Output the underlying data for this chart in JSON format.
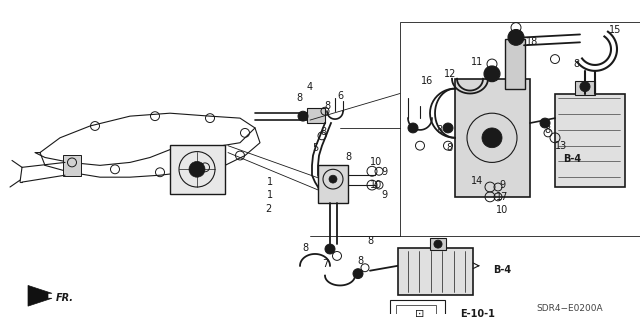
{
  "bg_color": "#ffffff",
  "diagram_color": "#1a1a1a",
  "fig_width": 6.4,
  "fig_height": 3.19,
  "dpi": 100,
  "watermark": "SDR4−E0200A"
}
